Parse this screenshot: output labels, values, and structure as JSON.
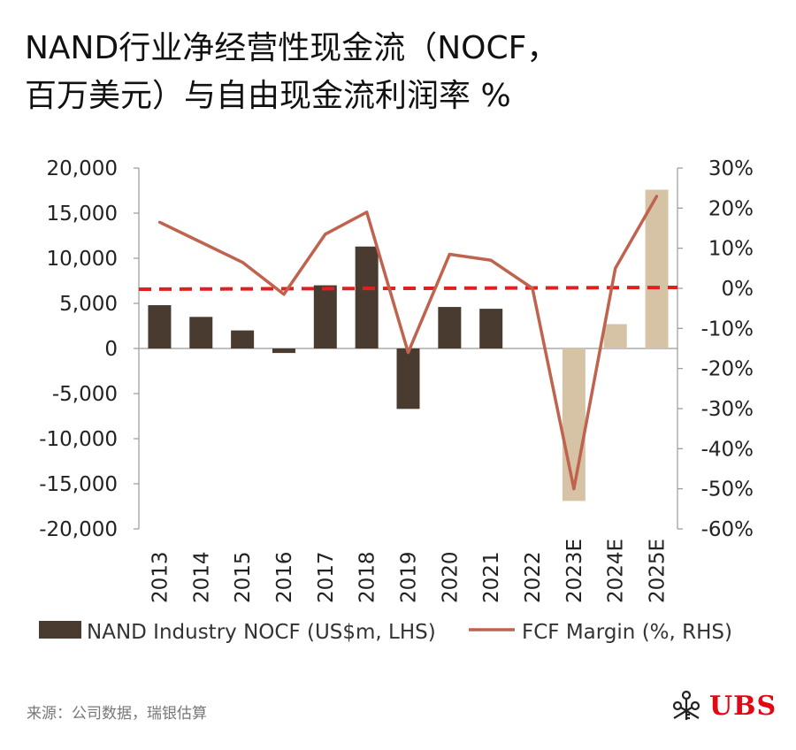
{
  "title": {
    "line1": "NAND行业净经营性现金流（NOCF，",
    "line2": "百万美元）与自由现金流利润率 %"
  },
  "chart_data": {
    "type": "bar",
    "categories": [
      "2013",
      "2014",
      "2015",
      "2016",
      "2017",
      "2018",
      "2019",
      "2020",
      "2021",
      "2022",
      "2023E",
      "2024E",
      "2025E"
    ],
    "series": [
      {
        "name": "NAND Industry NOCF (US$m, LHS)",
        "type": "bar",
        "axis": "left",
        "values": [
          4800,
          3500,
          2000,
          -500,
          7000,
          11300,
          -6700,
          4600,
          4400,
          null,
          -16900,
          2700,
          17600
        ],
        "colors": [
          "#4a3b30",
          "#4a3b30",
          "#4a3b30",
          "#4a3b30",
          "#4a3b30",
          "#4a3b30",
          "#4a3b30",
          "#4a3b30",
          "#4a3b30",
          "#4a3b30",
          "#d6c3a5",
          "#d6c3a5",
          "#d6c3a5"
        ]
      },
      {
        "name": "FCF Margin (%, RHS)",
        "type": "line",
        "axis": "right",
        "color": "#c0634e",
        "values": [
          16.5,
          11.5,
          6.5,
          -1.5,
          13.5,
          19,
          -16,
          8.5,
          7,
          0,
          -50,
          5,
          23
        ]
      }
    ],
    "reference_line": {
      "axis": "right",
      "value": 0,
      "style": "dashed",
      "color": "#e02020"
    },
    "left_axis": {
      "ylim": [
        -20000,
        20000
      ],
      "ticks": [
        20000,
        15000,
        10000,
        5000,
        0,
        -5000,
        -10000,
        -15000,
        -20000
      ],
      "tick_labels": [
        "20,000",
        "15,000",
        "10,000",
        "5,000",
        "0",
        "-5,000",
        "-10,000",
        "-15,000",
        "-20,000"
      ]
    },
    "right_axis": {
      "ylim": [
        -60,
        30
      ],
      "ticks": [
        30,
        20,
        10,
        0,
        -10,
        -20,
        -30,
        -40,
        -50,
        -60
      ],
      "tick_labels": [
        "30%",
        "20%",
        "10%",
        "0%",
        "-10%",
        "-20%",
        "-30%",
        "-40%",
        "-50%",
        "-60%"
      ]
    },
    "legend": {
      "position": "bottom",
      "items": [
        {
          "label": "NAND Industry NOCF (US$m, LHS)",
          "swatch": "bar",
          "color": "#4a3b30"
        },
        {
          "label": "FCF Margin (%, RHS)",
          "swatch": "line",
          "color": "#c0634e"
        }
      ]
    },
    "grid": false
  },
  "footer": {
    "source": "来源：公司数据，瑞银估算",
    "logo_text": "UBS",
    "logo_color": "#e30613",
    "logo_icon": "keys-icon"
  }
}
